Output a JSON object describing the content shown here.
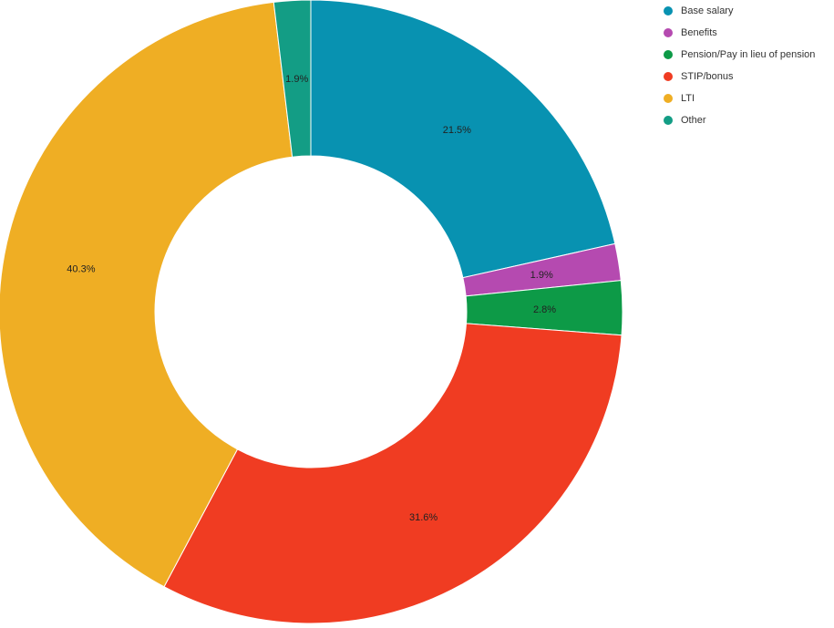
{
  "chart_data": {
    "type": "pie",
    "donut": true,
    "categories": [
      "Base salary",
      "Benefits",
      "Pension/Pay in lieu of pension",
      "STIP/bonus",
      "LTI",
      "Other"
    ],
    "values": [
      21.5,
      1.9,
      2.8,
      31.6,
      40.3,
      1.9
    ],
    "data_labels": [
      "21.5%",
      "1.9%",
      "2.8%",
      "31.6%",
      "40.3%",
      "1.9%"
    ],
    "colors": [
      "#0892b1",
      "#b54ab0",
      "#0d9a47",
      "#f03c22",
      "#efae24",
      "#139d85"
    ],
    "legend_position": "top-right",
    "start_angle": "top, clockwise"
  }
}
